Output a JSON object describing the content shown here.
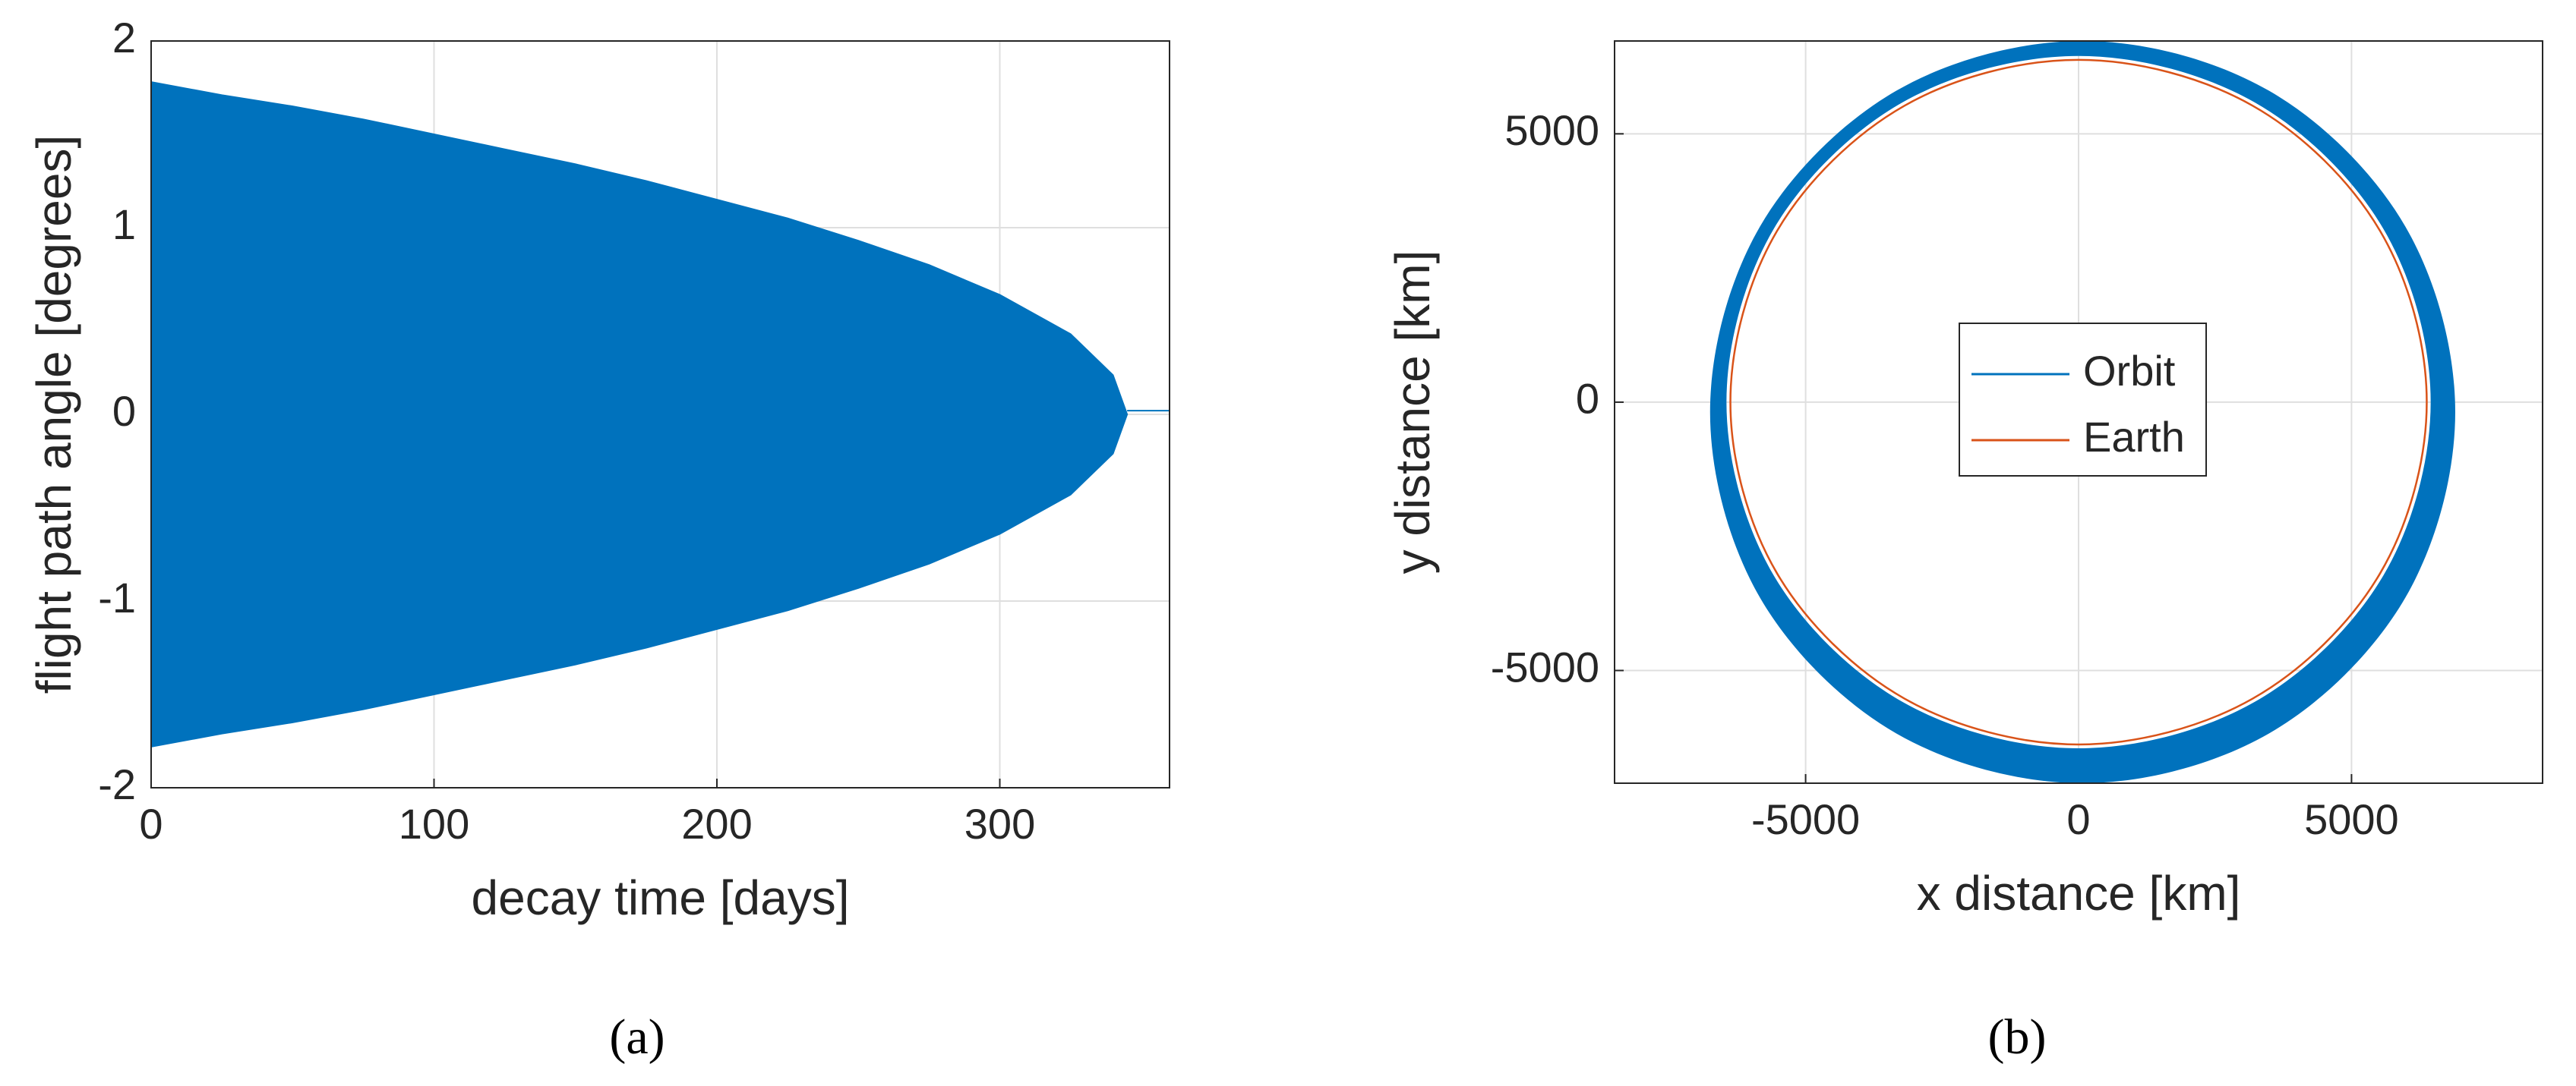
{
  "chart_data": [
    {
      "type": "area",
      "xlabel": "decay time [days]",
      "ylabel": "flight path angle [degrees]",
      "caption": "(a)",
      "x": [
        0,
        25,
        50,
        75,
        100,
        125,
        150,
        175,
        200,
        225,
        250,
        275,
        300,
        325,
        340,
        345
      ],
      "upper": [
        1.78,
        1.71,
        1.65,
        1.58,
        1.5,
        1.42,
        1.34,
        1.25,
        1.15,
        1.05,
        0.93,
        0.8,
        0.64,
        0.43,
        0.21,
        0
      ],
      "lower": [
        -1.78,
        -1.71,
        -1.65,
        -1.58,
        -1.5,
        -1.42,
        -1.34,
        -1.25,
        -1.15,
        -1.05,
        -0.93,
        -0.8,
        -0.64,
        -0.43,
        -0.21,
        0
      ],
      "tail": {
        "x": [
          345,
          360
        ],
        "values": [
          0.02,
          0.02
        ]
      },
      "color": "#0072bd",
      "xlim": [
        0,
        360
      ],
      "xticks": [
        0,
        100,
        200,
        300
      ],
      "ylim": [
        -2,
        2
      ],
      "yticks": [
        -2,
        -1,
        0,
        1,
        2
      ],
      "grid": true
    },
    {
      "type": "ring",
      "xlabel": "x distance [km]",
      "ylabel": "y distance [km]",
      "caption": "(b)",
      "series": [
        {
          "name": "Orbit",
          "color": "#0072bd",
          "outer": {
            "x": [
              6900,
              5986,
              3488,
              75,
              -3338,
              -5836,
              -6750,
              -5836,
              -3338,
              75,
              3488,
              5986
            ],
            "y": [
              -185,
              3273,
              5803,
              6730,
              5803,
              3273,
              -185,
              -3643,
              -6173,
              -7100,
              -6173,
              -3643
            ]
          },
          "inner": {
            "x": [
              6450,
              5586,
              3225,
              0,
              -3225,
              -5586,
              -6450,
              -5586,
              -3225,
              0,
              3225,
              5586
            ],
            "y": [
              0,
              3225,
              5586,
              6450,
              5586,
              3225,
              0,
              -3225,
              -5586,
              -6450,
              -5586,
              -3225
            ]
          }
        },
        {
          "name": "Earth",
          "color": "#d95319",
          "x": [
            6378,
            5524,
            3189,
            0,
            -3189,
            -5524,
            -6378,
            -5524,
            -3189,
            0,
            3189,
            5524
          ],
          "y": [
            0,
            3189,
            5524,
            6378,
            5524,
            3189,
            0,
            -3189,
            -5524,
            -6378,
            -5524,
            -3189
          ]
        }
      ],
      "xlim": [
        -8500,
        8500
      ],
      "xticks": [
        -5000,
        0,
        5000
      ],
      "ylim": [
        -7100,
        6730
      ],
      "yticks": [
        -5000,
        0,
        5000
      ],
      "grid": true,
      "legend": "center"
    }
  ]
}
